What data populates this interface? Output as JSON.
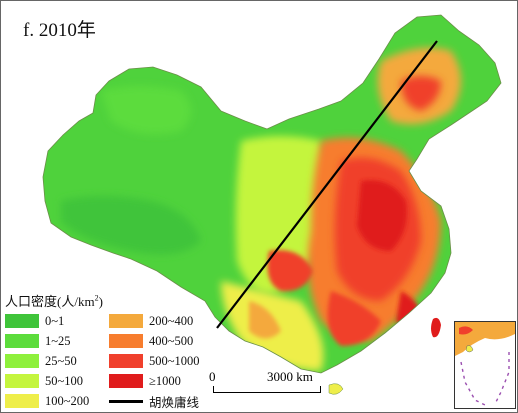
{
  "title": "f. 2010年",
  "legend": {
    "title_prefix": "人口密度(人/km",
    "title_sup": "2",
    "title_suffix": ")",
    "items": [
      {
        "label": "0~1",
        "color": "#3fc43a"
      },
      {
        "label": "1~25",
        "color": "#5cdc3c"
      },
      {
        "label": "25~50",
        "color": "#8ef03c"
      },
      {
        "label": "50~100",
        "color": "#c4f53e"
      },
      {
        "label": "100~200",
        "color": "#eeee4a"
      },
      {
        "label": "200~400",
        "color": "#f4a93c"
      },
      {
        "label": "400~500",
        "color": "#f77d2e"
      },
      {
        "label": "500~1000",
        "color": "#f0402c"
      },
      {
        "label": "≥1000",
        "color": "#e01c1c"
      },
      {
        "label": "胡焕庸线",
        "color": "#000000"
      }
    ]
  },
  "scale_bar": {
    "start": "0",
    "end": "3000 km"
  }
}
